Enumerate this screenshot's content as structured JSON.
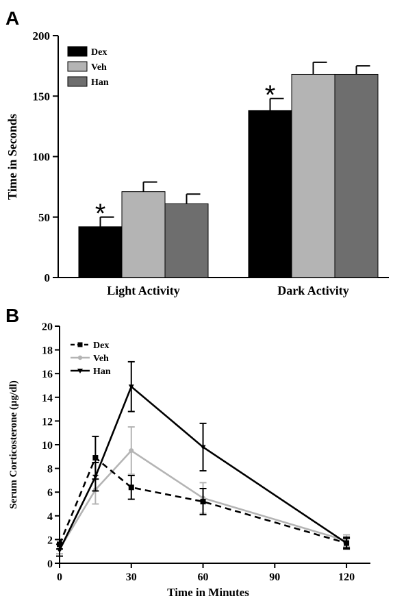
{
  "chart_data": [
    {
      "panel": "A",
      "type": "bar",
      "title": "",
      "xlabel": "",
      "ylabel": "Time in Seconds",
      "ylim": [
        0,
        200
      ],
      "yticks": [
        "0",
        "50",
        "100",
        "150",
        "200"
      ],
      "categories": [
        "Light Activity",
        "Dark Activity"
      ],
      "series": [
        {
          "name": "Dex",
          "color": "#000000",
          "values": [
            42,
            138
          ],
          "errors": [
            8,
            10
          ]
        },
        {
          "name": "Veh",
          "color": "#b4b4b4",
          "values": [
            71,
            168
          ],
          "errors": [
            8,
            10
          ]
        },
        {
          "name": "Han",
          "color": "#6e6e6e",
          "values": [
            61,
            168
          ],
          "errors": [
            8,
            7
          ]
        }
      ],
      "annotations": [
        {
          "text": "*",
          "category": "Light Activity",
          "series": "Dex"
        },
        {
          "text": "*",
          "category": "Dark Activity",
          "series": "Dex"
        }
      ],
      "legend_position": "top-left",
      "grid": false
    },
    {
      "panel": "B",
      "type": "line",
      "title": "",
      "xlabel": "Time in Minutes",
      "ylabel": "Serum Corticosterone (µg/dl)",
      "xlim": [
        0,
        130
      ],
      "ylim": [
        0,
        20
      ],
      "xticks": [
        "0",
        "30",
        "60",
        "90",
        "120"
      ],
      "yticks": [
        "0",
        "2",
        "4",
        "6",
        "8",
        "10",
        "12",
        "14",
        "16",
        "18",
        "20"
      ],
      "series": [
        {
          "name": "Dex",
          "color": "#000000",
          "style": "dashed",
          "marker": "square",
          "x": [
            0,
            15,
            30,
            60,
            120
          ],
          "y": [
            1.6,
            8.9,
            6.4,
            5.2,
            1.7
          ],
          "errors": [
            0.4,
            1.8,
            1.0,
            1.1,
            0.4
          ]
        },
        {
          "name": "Veh",
          "color": "#b4b4b4",
          "style": "solid",
          "marker": "circle",
          "x": [
            0,
            15,
            30,
            60,
            120
          ],
          "y": [
            1.2,
            6.2,
            9.5,
            5.5,
            1.9
          ],
          "errors": [
            0.4,
            1.2,
            2.0,
            1.3,
            0.5
          ]
        },
        {
          "name": "Han",
          "color": "#000000",
          "style": "solid",
          "marker": "triangle-down",
          "x": [
            0,
            15,
            30,
            60,
            120
          ],
          "y": [
            1.1,
            7.3,
            14.9,
            9.8,
            1.7
          ],
          "errors": [
            0.5,
            1.2,
            2.1,
            2.0,
            0.5
          ]
        }
      ],
      "legend_position": "top-left",
      "grid": false
    }
  ]
}
